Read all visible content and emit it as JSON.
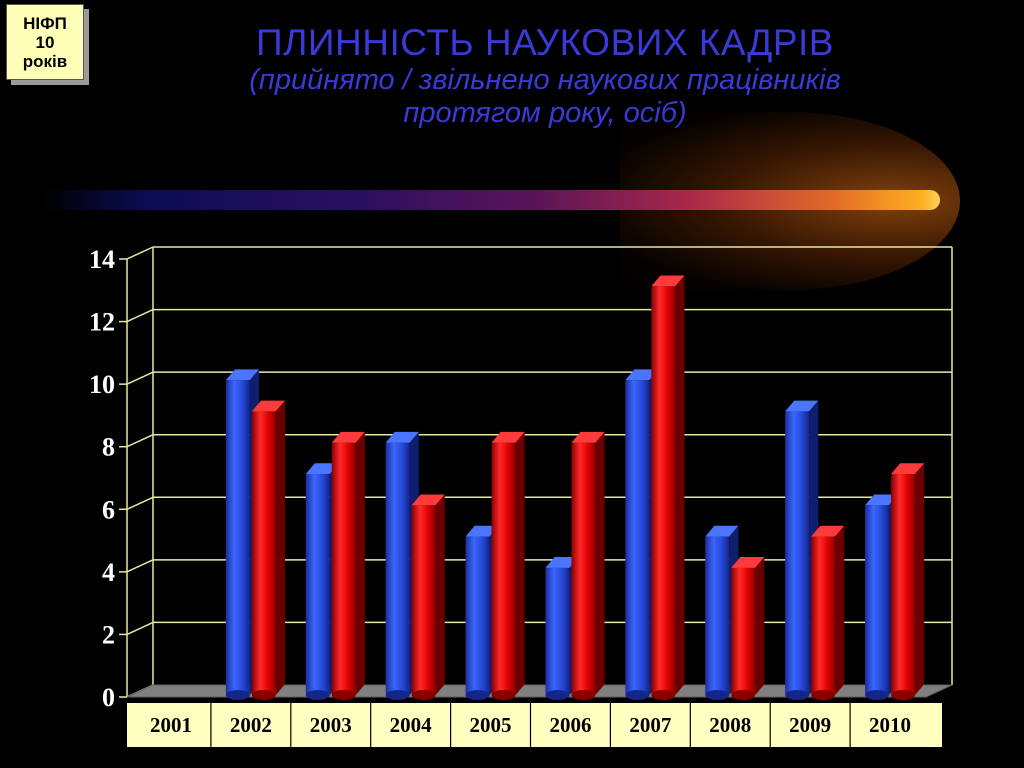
{
  "badge": {
    "line1": "НІФП",
    "line2": "10",
    "line3": "років"
  },
  "title": {
    "main": "ПЛИННІСТЬ НАУКОВИХ КАДРІВ",
    "sub_line1": "(прийнято / звільнено наукових працівників",
    "sub_line2": "протягом року, осіб)"
  },
  "colors": {
    "title": "#3a3ad8",
    "series_hired": "#2244dd",
    "series_dismissed": "#dd0000",
    "grid": "#e8e8a0",
    "category_bar": "#ffffc0"
  },
  "chart_data": {
    "type": "bar",
    "categories": [
      "2001",
      "2002",
      "2003",
      "2004",
      "2005",
      "2006",
      "2007",
      "2008",
      "2009",
      "2010"
    ],
    "series": [
      {
        "values": [
          0,
          10,
          7,
          8,
          5,
          4,
          10,
          5,
          9,
          6
        ],
        "color": "#2244dd"
      },
      {
        "values": [
          0,
          9,
          8,
          6,
          8,
          8,
          13,
          4,
          5,
          7
        ],
        "color": "#dd0000"
      }
    ],
    "ylim": [
      0,
      14
    ],
    "yticks": [
      "0",
      "2",
      "4",
      "6",
      "8",
      "10",
      "12",
      "14"
    ],
    "grid": true,
    "style": "3d-cylinder"
  }
}
